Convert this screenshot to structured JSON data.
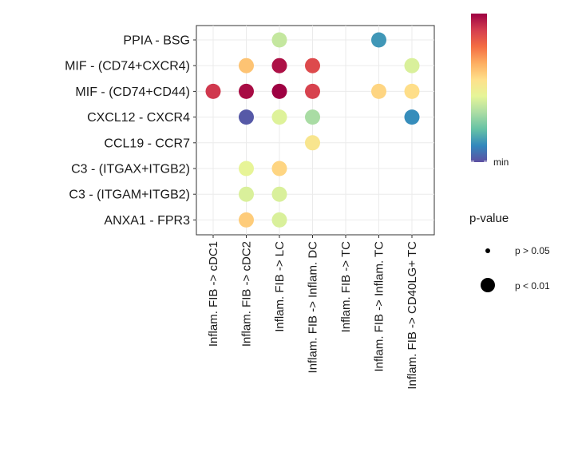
{
  "chart_data": {
    "type": "dot",
    "title": "",
    "xlabel": "",
    "ylabel": "",
    "grid": true,
    "rows": [
      "PPIA - BSG",
      "MIF - (CD74+CXCR4)",
      "MIF - (CD74+CD44)",
      "CXCL12 - CXCR4",
      "CCL19 - CCR7",
      "C3 - (ITGAX+ITGB2)",
      "C3 - (ITGAM+ITGB2)",
      "ANXA1 - FPR3"
    ],
    "columns": [
      "Inflam. FIB -> cDC1",
      "Inflam. FIB -> cDC2",
      "Inflam. FIB -> LC",
      "Inflam. FIB -> Inflam. DC",
      "Inflam. FIB -> TC",
      "Inflam. FIB -> Inflam. TC",
      "Inflam. FIB -> CD40LG+ TC"
    ],
    "points": [
      {
        "row": "PPIA - BSG",
        "col": "Inflam. FIB -> LC",
        "level": 0.38,
        "p": "p < 0.01"
      },
      {
        "row": "PPIA - BSG",
        "col": "Inflam. FIB -> Inflam. TC",
        "level": 0.14,
        "p": "p < 0.01"
      },
      {
        "row": "MIF - (CD74+CXCR4)",
        "col": "Inflam. FIB -> cDC2",
        "level": 0.62,
        "p": "p < 0.01"
      },
      {
        "row": "MIF - (CD74+CXCR4)",
        "col": "Inflam. FIB -> LC",
        "level": 0.97,
        "p": "p < 0.01"
      },
      {
        "row": "MIF - (CD74+CXCR4)",
        "col": "Inflam. FIB -> Inflam. DC",
        "level": 0.86,
        "p": "p < 0.01"
      },
      {
        "row": "MIF - (CD74+CXCR4)",
        "col": "Inflam. FIB -> CD40LG+ TC",
        "level": 0.42,
        "p": "p < 0.01"
      },
      {
        "row": "MIF - (CD74+CD44)",
        "col": "Inflam. FIB -> cDC1",
        "level": 0.9,
        "p": "p < 0.01"
      },
      {
        "row": "MIF - (CD74+CD44)",
        "col": "Inflam. FIB -> cDC2",
        "level": 0.98,
        "p": "p < 0.01"
      },
      {
        "row": "MIF - (CD74+CD44)",
        "col": "Inflam. FIB -> LC",
        "level": 1.0,
        "p": "p < 0.01"
      },
      {
        "row": "MIF - (CD74+CD44)",
        "col": "Inflam. FIB -> Inflam. DC",
        "level": 0.88,
        "p": "p < 0.01"
      },
      {
        "row": "MIF - (CD74+CD44)",
        "col": "Inflam. FIB -> Inflam. TC",
        "level": 0.58,
        "p": "p < 0.01"
      },
      {
        "row": "MIF - (CD74+CD44)",
        "col": "Inflam. FIB -> CD40LG+ TC",
        "level": 0.56,
        "p": "p < 0.01"
      },
      {
        "row": "CXCL12 - CXCR4",
        "col": "Inflam. FIB -> cDC2",
        "level": 0.02,
        "p": "p < 0.01"
      },
      {
        "row": "CXCL12 - CXCR4",
        "col": "Inflam. FIB -> LC",
        "level": 0.43,
        "p": "p < 0.01"
      },
      {
        "row": "CXCL12 - CXCR4",
        "col": "Inflam. FIB -> Inflam. DC",
        "level": 0.33,
        "p": "p < 0.01"
      },
      {
        "row": "CXCL12 - CXCR4",
        "col": "Inflam. FIB -> CD40LG+ TC",
        "level": 0.12,
        "p": "p < 0.01"
      },
      {
        "row": "CCL19 - CCR7",
        "col": "Inflam. FIB -> Inflam. DC",
        "level": 0.53,
        "p": "p < 0.01"
      },
      {
        "row": "C3 - (ITGAX+ITGB2)",
        "col": "Inflam. FIB -> cDC2",
        "level": 0.45,
        "p": "p < 0.01"
      },
      {
        "row": "C3 - (ITGAX+ITGB2)",
        "col": "Inflam. FIB -> LC",
        "level": 0.58,
        "p": "p < 0.01"
      },
      {
        "row": "C3 - (ITGAM+ITGB2)",
        "col": "Inflam. FIB -> cDC2",
        "level": 0.42,
        "p": "p < 0.01"
      },
      {
        "row": "C3 - (ITGAM+ITGB2)",
        "col": "Inflam. FIB -> LC",
        "level": 0.42,
        "p": "p < 0.01"
      },
      {
        "row": "ANXA1 - FPR3",
        "col": "Inflam. FIB -> cDC2",
        "level": 0.6,
        "p": "p < 0.01"
      },
      {
        "row": "ANXA1 - FPR3",
        "col": "Inflam. FIB -> LC",
        "level": 0.42,
        "p": "p < 0.01"
      }
    ],
    "colorbar": {
      "label_min": "min",
      "palette": [
        "#5E4FA2",
        "#3288BD",
        "#66C2A5",
        "#ABDDA4",
        "#E6F598",
        "#FEE08B",
        "#FDAE61",
        "#F46D43",
        "#D53E4F",
        "#9E0142"
      ]
    },
    "size_legend": {
      "title": "p-value",
      "entries": [
        "p > 0.05",
        "p < 0.01"
      ]
    }
  }
}
